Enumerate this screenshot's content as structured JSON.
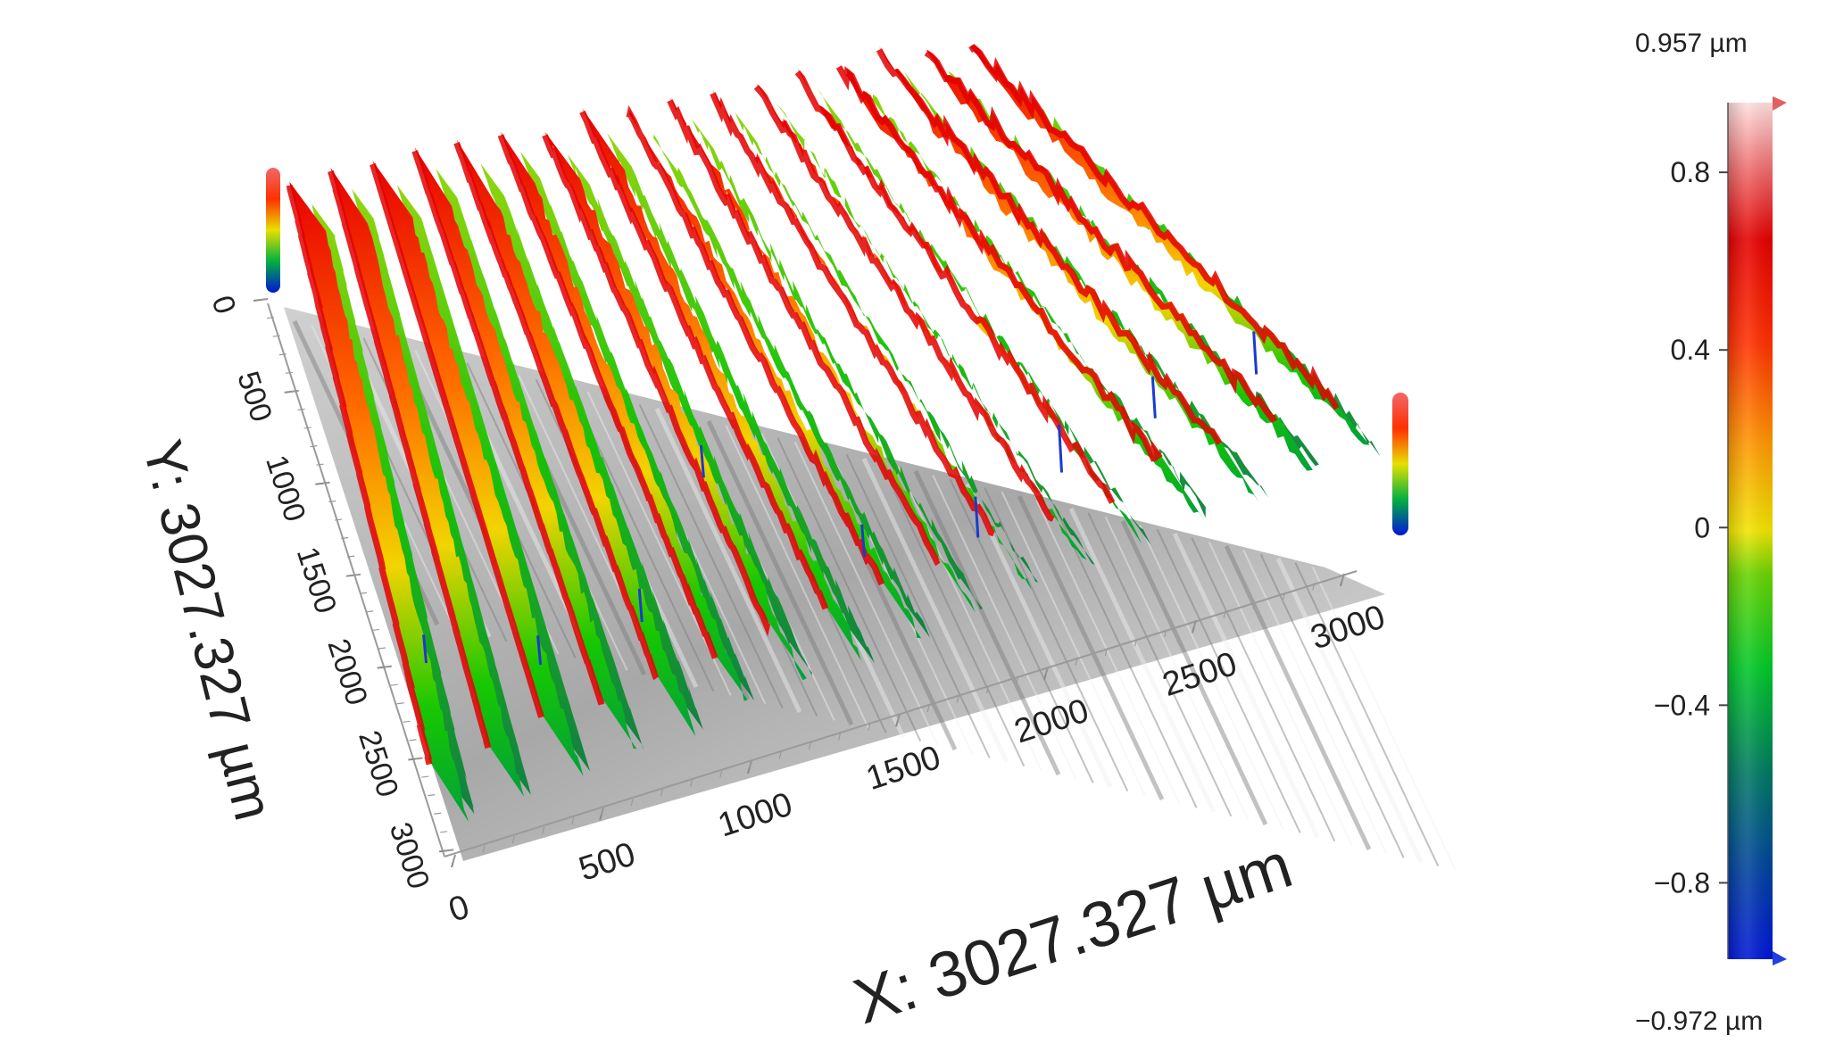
{
  "chart_data": {
    "type": "3d-surface",
    "x_axis": {
      "label": "X: 3027.327 µm",
      "range": [
        0,
        3027.327
      ],
      "ticks": [
        "0",
        "500",
        "1000",
        "1500",
        "2000",
        "2500",
        "3000"
      ],
      "tick_values": [
        0,
        500,
        1000,
        1500,
        2000,
        2500,
        3000
      ]
    },
    "y_axis": {
      "label": "Y: 3027.327 µm",
      "range": [
        0,
        3027.327
      ],
      "ticks": [
        "0",
        "500",
        "1000",
        "1500",
        "2000",
        "2500",
        "3000"
      ],
      "tick_values": [
        0,
        500,
        1000,
        1500,
        2000,
        2500,
        3000
      ]
    },
    "z_colorbar": {
      "max_label": "0.957 µm",
      "min_label": "−0.972 µm",
      "max": 0.957,
      "min": -0.972,
      "ticks": [
        "0.8",
        "0.4",
        "0",
        "−0.4",
        "−0.8"
      ],
      "tick_values": [
        0.8,
        0.4,
        0,
        -0.4,
        -0.8
      ],
      "colormap": [
        "#0016d8",
        "#008a7c",
        "#00c828",
        "#1fd800",
        "#f2e400",
        "#ff8c00",
        "#ff1e00",
        "#e60000",
        "#ff8c8c",
        "#ffd6d6"
      ]
    },
    "surface": {
      "description_pattern": "parallel diagonal ridges",
      "ridge_count": 17,
      "height_range": [
        -0.972,
        0.957
      ],
      "base_colors": [
        "#dcdcdc",
        "#b8b8b8",
        "#8a8a8a"
      ]
    }
  }
}
